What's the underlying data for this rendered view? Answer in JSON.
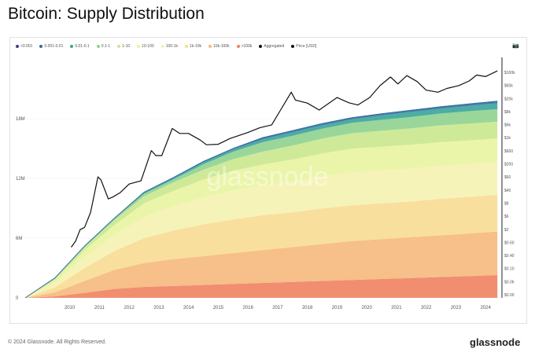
{
  "header": {
    "title": "Bitcoin: Supply Distribution"
  },
  "legend": [
    {
      "label": "<0.001",
      "color": "#3d3d8f"
    },
    {
      "label": "0.001-0.01",
      "color": "#2d6e9e"
    },
    {
      "label": "0.01-0.1",
      "color": "#3aa39a"
    },
    {
      "label": "0.1-1",
      "color": "#8fd18e"
    },
    {
      "label": "1-10",
      "color": "#c9e88e"
    },
    {
      "label": "10-100",
      "color": "#e9f4a0"
    },
    {
      "label": "100-1k",
      "color": "#f5f2b0"
    },
    {
      "label": "1k-10k",
      "color": "#f8dc92"
    },
    {
      "label": "10k-100k",
      "color": "#f6b87c"
    },
    {
      "label": ">100k",
      "color": "#ef8260"
    },
    {
      "label": "Aggregated",
      "color": "#111111"
    },
    {
      "label": "Price [USD]",
      "color": "#111111"
    }
  ],
  "watermark": "glassnode",
  "footer": {
    "copyright": "© 2024 Glassnode. All Rights Reserved.",
    "logo": "glassnode"
  },
  "icons": {
    "camera": "camera-icon"
  },
  "chart_data": {
    "type": "area",
    "title": "Bitcoin: Supply Distribution",
    "x_label": "",
    "y_label": "",
    "x_ticks": [
      "2010",
      "2011",
      "2012",
      "2013",
      "2014",
      "2015",
      "2016",
      "2017",
      "2018",
      "2019",
      "2020",
      "2021",
      "2022",
      "2023",
      "2024"
    ],
    "y_ticks_left": [
      "0",
      "6M",
      "12M",
      "18M"
    ],
    "y_ticks_right": [
      "$0.00",
      "$0.06",
      "$0.10",
      "$0.40",
      "$0.60",
      "$2",
      "$6",
      "$8",
      "$40",
      "$60",
      "$200",
      "$600",
      "$1k",
      "$6k",
      "$8k",
      "$20k",
      "$60k",
      "$100k"
    ],
    "x_domain": [
      2009.0,
      2025.0
    ],
    "y_left_range": [
      0,
      24000000
    ],
    "y_right_scale": "log",
    "stacked": true,
    "aggregated_supply": {
      "x": [
        2009.0,
        2010.0,
        2011.0,
        2012.0,
        2013.0,
        2014.0,
        2015.0,
        2016.0,
        2017.0,
        2018.0,
        2019.0,
        2020.0,
        2021.0,
        2022.0,
        2023.0,
        2024.0,
        2024.9
      ],
      "values": [
        0,
        2000000,
        5200000,
        8000000,
        10600000,
        12100000,
        13700000,
        15000000,
        16100000,
        16800000,
        17500000,
        18100000,
        18500000,
        18850000,
        19200000,
        19500000,
        19750000
      ]
    },
    "series": [
      {
        "name": ">100k",
        "values": [
          0,
          150000,
          500000,
          900000,
          1100000,
          1200000,
          1300000,
          1400000,
          1500000,
          1600000,
          1700000,
          1800000,
          1900000,
          2000000,
          2100000,
          2200000,
          2300000
        ]
      },
      {
        "name": "10k-100k",
        "values": [
          0,
          400000,
          1200000,
          1900000,
          2400000,
          2700000,
          2900000,
          3100000,
          3300000,
          3500000,
          3700000,
          3900000,
          4000000,
          4100000,
          4200000,
          4300000,
          4400000
        ]
      },
      {
        "name": "1k-10k",
        "values": [
          0,
          500000,
          1300000,
          1900000,
          2500000,
          2900000,
          3200000,
          3400000,
          3500000,
          3500000,
          3600000,
          3600000,
          3600000,
          3600000,
          3700000,
          3700000,
          3700000
        ]
      },
      {
        "name": "100-1k",
        "values": [
          0,
          450000,
          1100000,
          1600000,
          2100000,
          2400000,
          2700000,
          2900000,
          3000000,
          3100000,
          3200000,
          3300000,
          3300000,
          3300000,
          3300000,
          3300000,
          3300000
        ]
      },
      {
        "name": "10-100",
        "values": [
          0,
          300000,
          700000,
          1000000,
          1400000,
          1600000,
          1800000,
          2000000,
          2100000,
          2200000,
          2300000,
          2400000,
          2400000,
          2400000,
          2400000,
          2400000,
          2400000
        ]
      },
      {
        "name": "1-10",
        "values": [
          0,
          150000,
          300000,
          500000,
          700000,
          850000,
          1000000,
          1150000,
          1300000,
          1400000,
          1500000,
          1550000,
          1600000,
          1650000,
          1700000,
          1700000,
          1700000
        ]
      },
      {
        "name": "0.1-1",
        "values": [
          0,
          40000,
          80000,
          150000,
          250000,
          300000,
          550000,
          750000,
          950000,
          1000000,
          1000000,
          1050000,
          1100000,
          1150000,
          1200000,
          1250000,
          1250000
        ]
      },
      {
        "name": "0.01-0.1",
        "values": [
          0,
          10000,
          15000,
          40000,
          100000,
          120000,
          200000,
          230000,
          300000,
          350000,
          350000,
          350000,
          450000,
          500000,
          500000,
          550000,
          600000
        ]
      },
      {
        "name": "0.001-0.01",
        "values": [
          0,
          0,
          3000,
          8000,
          30000,
          40000,
          50000,
          60000,
          120000,
          120000,
          120000,
          120000,
          130000,
          130000,
          140000,
          150000,
          150000
        ]
      },
      {
        "name": "<0.001",
        "values": [
          0,
          0,
          2000,
          2000,
          20000,
          30000,
          30000,
          30000,
          40000,
          40000,
          40000,
          40000,
          40000,
          40000,
          40000,
          40000,
          50000
        ]
      }
    ],
    "price": {
      "name": "Price [USD]",
      "x": [
        2010.55,
        2010.7,
        2010.85,
        2011.0,
        2011.2,
        2011.45,
        2011.55,
        2011.8,
        2011.95,
        2012.2,
        2012.5,
        2012.9,
        2013.25,
        2013.4,
        2013.6,
        2013.95,
        2014.2,
        2014.5,
        2014.9,
        2015.1,
        2015.5,
        2015.9,
        2016.5,
        2016.9,
        2017.3,
        2017.6,
        2017.96,
        2018.1,
        2018.5,
        2018.9,
        2019.5,
        2019.9,
        2020.2,
        2020.6,
        2020.95,
        2021.3,
        2021.55,
        2021.85,
        2022.2,
        2022.5,
        2022.9,
        2023.2,
        2023.6,
        2023.95,
        2024.2,
        2024.5,
        2024.9
      ],
      "values": [
        0.06,
        0.1,
        0.25,
        0.3,
        1.0,
        18.0,
        14.0,
        3.0,
        3.5,
        5.0,
        10.0,
        13.0,
        150.0,
        100.0,
        100.0,
        900.0,
        600.0,
        600.0,
        350.0,
        240.0,
        250.0,
        400.0,
        650.0,
        950.0,
        1200.0,
        4000.0,
        17000.0,
        9000.0,
        7000.0,
        4000.0,
        11000.0,
        7200.0,
        6000.0,
        11000.0,
        29000.0,
        58000.0,
        33000.0,
        65000.0,
        40000.0,
        20000.0,
        17000.0,
        23000.0,
        29000.0,
        42000.0,
        68000.0,
        60000.0,
        95000.0
      ]
    }
  }
}
